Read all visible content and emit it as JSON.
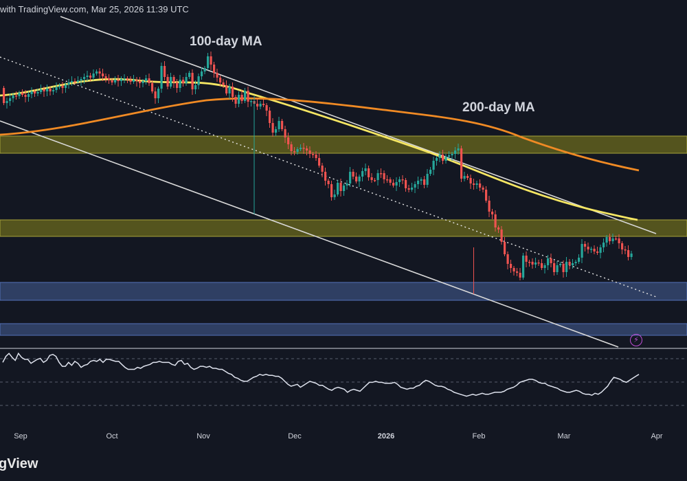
{
  "header": {
    "text": "with TradingView.com, Mar 25, 2026 11:39 UTC"
  },
  "brand": {
    "text": "gView"
  },
  "annotations": {
    "ma100": "100-day MA",
    "ma200": "200-day MA"
  },
  "icons": {
    "event": "lightning-icon"
  },
  "colors": {
    "background": "#131722",
    "up": "#26a69a",
    "down": "#ef5350",
    "ma100": "#f5e663",
    "ma200": "#f08a24",
    "resistance_zone": "#6b6a1e",
    "support_zone": "#3a4d7a",
    "rsi": "#dfe3ee",
    "channel": "#d9d9d9"
  },
  "chart_data": {
    "type": "candlestick",
    "x_tick_labels": [
      "Sep",
      "Oct",
      "Nov",
      "Dec",
      "2026",
      "Feb",
      "Mar",
      "Apr"
    ],
    "closes": [
      150,
      147,
      143,
      139,
      140,
      135,
      138,
      141,
      137,
      133,
      136,
      134,
      130,
      133,
      129,
      133,
      131,
      127,
      125,
      128,
      123,
      120,
      118,
      119,
      117,
      115,
      112,
      110,
      113,
      107,
      104,
      107,
      111,
      114,
      117,
      120,
      116,
      118,
      115,
      114,
      116,
      119,
      116,
      118,
      121,
      118,
      114,
      121,
      133,
      143,
      129,
      96,
      112,
      126,
      112,
      120,
      128,
      116,
      121,
      112,
      106,
      130,
      124,
      111,
      104,
      99,
      82,
      94,
      106,
      113,
      120,
      124,
      136,
      126,
      141,
      151,
      138,
      147,
      132,
      148,
      147,
      151,
      155,
      151,
      153,
      161,
      179,
      193,
      188,
      176,
      188,
      200,
      210,
      220,
      221,
      217,
      215,
      216,
      219,
      224,
      225,
      230,
      241,
      250,
      263,
      268,
      287,
      283,
      266,
      278,
      270,
      267,
      250,
      257,
      264,
      257,
      249,
      245,
      258,
      262,
      262,
      252,
      252,
      261,
      261,
      266,
      270,
      265,
      261,
      262,
      274,
      276,
      273,
      268,
      263,
      261,
      269,
      253,
      247,
      234,
      230,
      225,
      234,
      228,
      226,
      224,
      219,
      216,
      260,
      256,
      259,
      267,
      269,
      267,
      273,
      276,
      292,
      308,
      312,
      331,
      334,
      352,
      370,
      384,
      390,
      395,
      397,
      404,
      372,
      381,
      381,
      385,
      382,
      383,
      390,
      386,
      376,
      383,
      396,
      386,
      384,
      396,
      381,
      386,
      383,
      381,
      375,
      355,
      359,
      363,
      362,
      366,
      368,
      360,
      353,
      345,
      351,
      347,
      347,
      354,
      363,
      364,
      374,
      369
    ],
    "ma100_curve": [
      "Aug ~139",
      "Oct 10 ~118",
      "Jan 15 ~218",
      "Mar 20 ~318"
    ],
    "ma200_curve": [
      "Aug ~196",
      "Nov 1 ~145",
      "Jan 1 ~203",
      "Mar 20 ~247"
    ],
    "channel_upper": "Aug ~24 to Mar 29 ~339",
    "channel_lower": "Aug ~176 to Mar 20 ~505",
    "midline_dotted": "Aug ~83 to Mar 29 ~432",
    "resistance_zones": [
      "~198-223",
      "~320-344"
    ],
    "support_zones": [
      "~411-437",
      "~471-488"
    ],
    "rsi": {
      "values": [
        57,
        63,
        66,
        62,
        59,
        66,
        62,
        60,
        60,
        56,
        58,
        60,
        61,
        57,
        59,
        64,
        65,
        63,
        57,
        53,
        53,
        57,
        54,
        58,
        56,
        52,
        54,
        55,
        58,
        59,
        58,
        60,
        57,
        60,
        60,
        59,
        58,
        58,
        55,
        52,
        50,
        50,
        50,
        52,
        51,
        53,
        54,
        55,
        57,
        57,
        58,
        57,
        57,
        57,
        55,
        54,
        58,
        59,
        55,
        56,
        52,
        50,
        51,
        53,
        53,
        52,
        53,
        51,
        51,
        50,
        50,
        48,
        46,
        45,
        42,
        41,
        39,
        38,
        38,
        40,
        42,
        43,
        45,
        44,
        45,
        44,
        44,
        43,
        43,
        41,
        38,
        35,
        33,
        34,
        35,
        32,
        34,
        36,
        38,
        37,
        36,
        34,
        34,
        32,
        30,
        29,
        31,
        32,
        31,
        30,
        27,
        29,
        30,
        29,
        28,
        31,
        34,
        37,
        37,
        38,
        37,
        37,
        36,
        36,
        36,
        37,
        35,
        32,
        31,
        30,
        31,
        31,
        33,
        34,
        37,
        39,
        38,
        36,
        34,
        33,
        33,
        32,
        30,
        29,
        27,
        26,
        25,
        24,
        23,
        24,
        25,
        24,
        25,
        26,
        25,
        25,
        26,
        27,
        27,
        27,
        28,
        30,
        31,
        32,
        34,
        37,
        38,
        39,
        40,
        40,
        39,
        37,
        36,
        36,
        34,
        33,
        32,
        31,
        29,
        28,
        27,
        27,
        28,
        29,
        28,
        26,
        25,
        25,
        24,
        26,
        25,
        27,
        30,
        33,
        38,
        42,
        41,
        40,
        38,
        37,
        39,
        41,
        43,
        45
      ],
      "dashed_levels": 3
    }
  }
}
